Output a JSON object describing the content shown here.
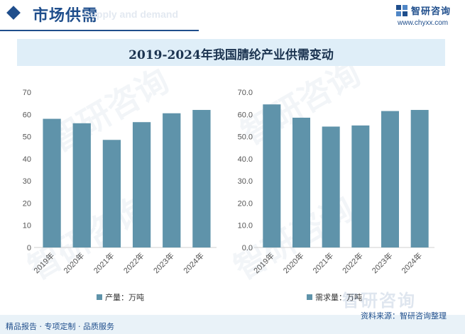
{
  "header": {
    "section_title": "市场供需",
    "section_subtitle": "Supply and demand",
    "brand_name": "智研咨询",
    "brand_url": "www.chyxx.com"
  },
  "chart_title": "2019-2024年我国腈纶产业供需变动",
  "colors": {
    "bar": "#5f93aa",
    "accent": "#1f4e8c",
    "title_bg": "#dfeef8"
  },
  "chart_data": [
    {
      "type": "bar",
      "categories": [
        "2019年",
        "2020年",
        "2021年",
        "2022年",
        "2023年",
        "2024年"
      ],
      "series": [
        {
          "name": "产量：万吨",
          "values": [
            58,
            56,
            48.5,
            56.5,
            60.5,
            62
          ]
        }
      ],
      "ylim": [
        0,
        70
      ],
      "yticks": [
        "0",
        "10",
        "20",
        "30",
        "40",
        "50",
        "60",
        "70"
      ],
      "legend": "bottom-left",
      "grid": false
    },
    {
      "type": "bar",
      "categories": [
        "2019年",
        "2020年",
        "2021年",
        "2022年",
        "2023年",
        "2024年"
      ],
      "series": [
        {
          "name": "需求量：万吨",
          "values": [
            64.5,
            58.5,
            54.5,
            55,
            61.5,
            62
          ]
        }
      ],
      "ylim": [
        0,
        70
      ],
      "yticks": [
        "0.0",
        "10.0",
        "20.0",
        "30.0",
        "40.0",
        "50.0",
        "60.0",
        "70.0"
      ],
      "legend": "bottom-left",
      "grid": false
    }
  ],
  "footer": {
    "left_text": "精品报告 · 专项定制 · 品质服务",
    "source_text": "资料来源：智研咨询整理",
    "brand_mark": "智研咨询"
  }
}
